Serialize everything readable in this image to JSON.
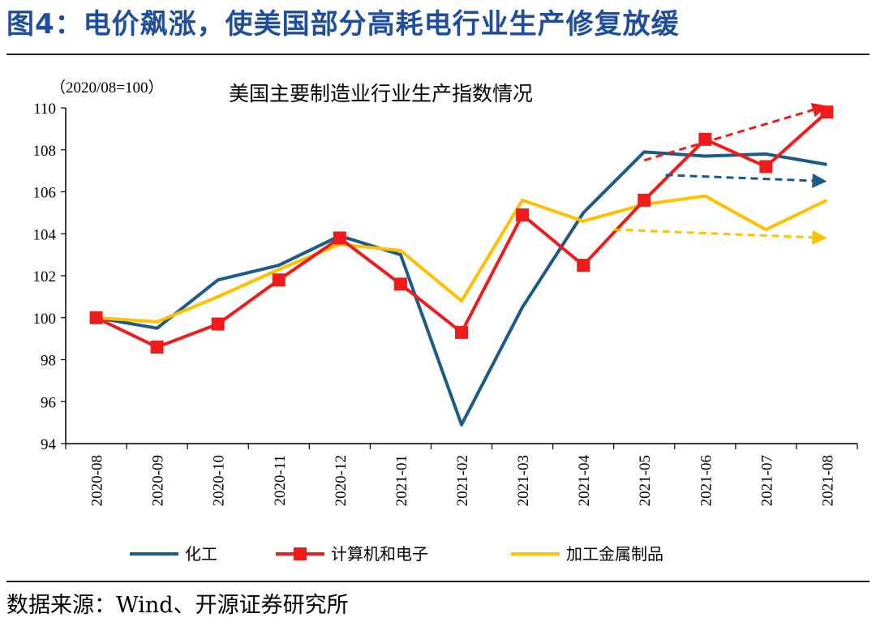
{
  "figure": {
    "title": "图4：电价飙涨，使美国部分高耗电行业生产修复放缓",
    "source": "数据来源：Wind、开源证券研究所"
  },
  "colors": {
    "title": "#1f4e9c",
    "chemical": "#1b5b86",
    "electronics": "#ee1c1c",
    "metal": "#ffc000"
  },
  "chart_data": {
    "type": "line",
    "title": "美国主要制造业行业生产指数情况",
    "note": "（2020/08=100）",
    "categories": [
      "2020-08",
      "2020-09",
      "2020-10",
      "2020-11",
      "2020-12",
      "2021-01",
      "2021-02",
      "2021-03",
      "2021-04",
      "2021-05",
      "2021-06",
      "2021-07",
      "2021-08"
    ],
    "series": [
      {
        "name": "化工",
        "color": "#1b5b86",
        "marker": "none",
        "values": [
          100.0,
          99.5,
          101.8,
          102.5,
          103.9,
          103.0,
          94.9,
          100.5,
          105.0,
          107.9,
          107.7,
          107.8,
          107.3
        ]
      },
      {
        "name": "计算机和电子",
        "color": "#ee1c1c",
        "marker": "square",
        "values": [
          100.0,
          98.6,
          99.7,
          101.8,
          103.8,
          101.6,
          99.3,
          104.9,
          102.5,
          105.6,
          108.5,
          107.2,
          109.8
        ]
      },
      {
        "name": "加工金属制品",
        "color": "#ffc000",
        "marker": "none",
        "values": [
          100.0,
          99.8,
          101.0,
          102.3,
          103.5,
          103.2,
          100.8,
          105.6,
          104.6,
          105.4,
          105.8,
          104.2,
          105.6
        ]
      }
    ],
    "trend_arrows": [
      {
        "series": "计算机和电子",
        "color": "#ee1c1c",
        "from": {
          "x": 9.0,
          "y": 107.5
        },
        "to": {
          "x": 12.0,
          "y": 110.1
        }
      },
      {
        "series": "化工",
        "color": "#1b5b86",
        "from": {
          "x": 9.35,
          "y": 106.8
        },
        "to": {
          "x": 12.0,
          "y": 106.5
        }
      },
      {
        "series": "加工金属制品",
        "color": "#ffc000",
        "from": {
          "x": 8.5,
          "y": 104.2
        },
        "to": {
          "x": 12.0,
          "y": 103.8
        }
      }
    ],
    "ylim": [
      94,
      110
    ],
    "yticks": [
      94,
      96,
      98,
      100,
      102,
      104,
      106,
      108,
      110
    ],
    "xlabel": "",
    "ylabel": "",
    "grid": false,
    "legend_position": "bottom"
  }
}
